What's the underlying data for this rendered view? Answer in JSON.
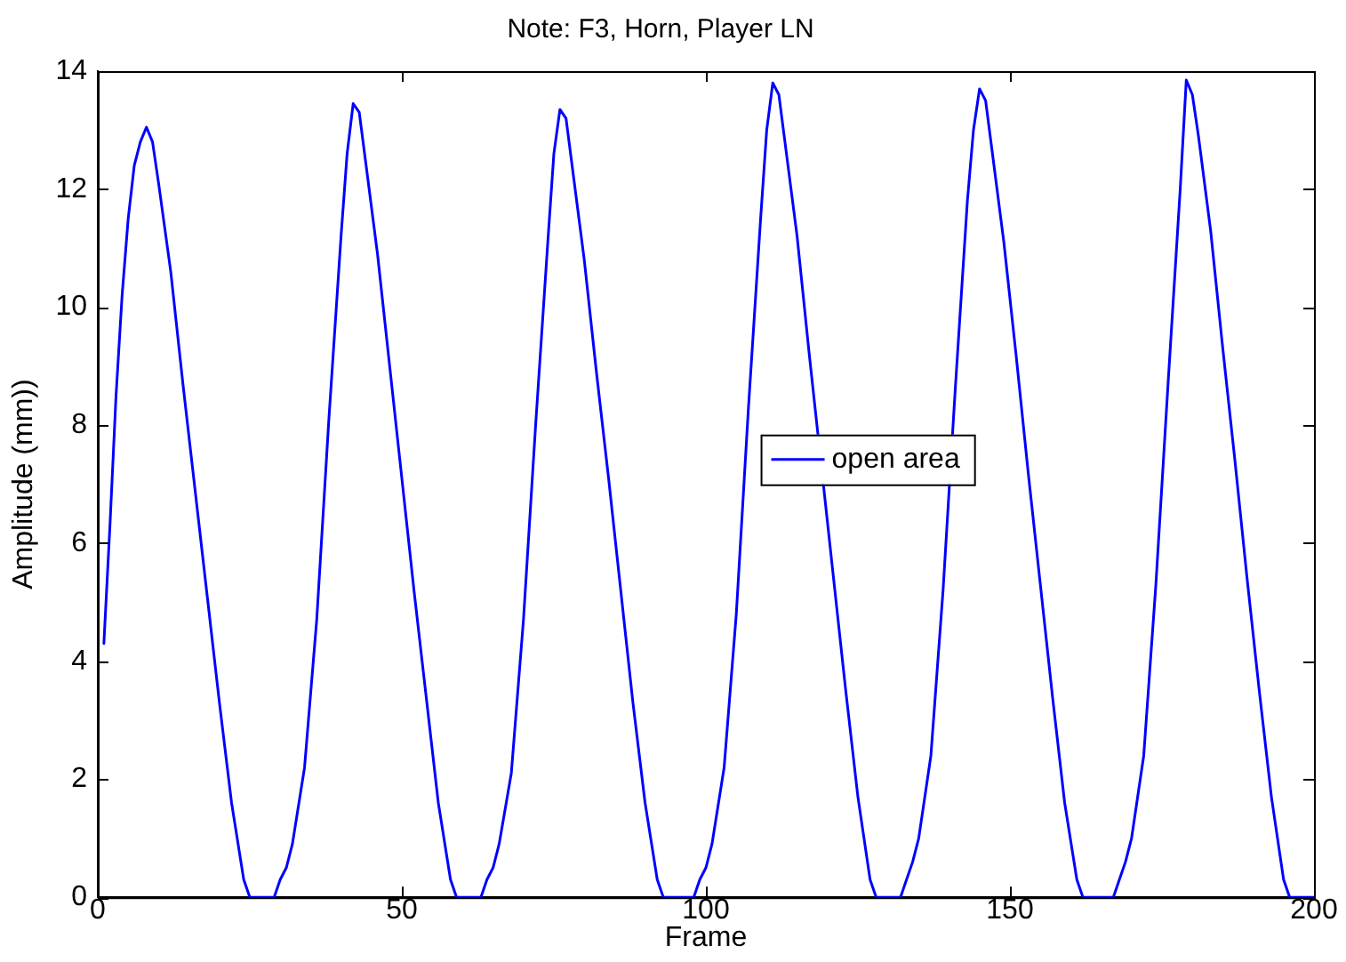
{
  "chart_data": {
    "type": "line",
    "title": "Note: F3, Horn, Player LN",
    "xlabel": "Frame",
    "ylabel": "Amplitude (mm))",
    "xlim": [
      0,
      200
    ],
    "xticks": [
      0,
      50,
      100,
      150,
      200
    ],
    "ylim": [
      0,
      14
    ],
    "yticks": [
      0,
      2,
      4,
      6,
      8,
      10,
      12,
      14
    ],
    "grid": false,
    "legend": "right",
    "marker": "none",
    "line_style": "solid",
    "series": [
      {
        "name": "open area",
        "color": "#0000ff",
        "x": [
          1,
          2,
          3,
          4,
          5,
          6,
          7,
          8,
          9,
          10,
          12,
          14,
          16,
          18,
          20,
          22,
          24,
          25,
          29,
          30,
          31,
          32,
          34,
          36,
          38,
          40,
          41,
          42,
          43,
          44,
          46,
          48,
          50,
          52,
          54,
          56,
          58,
          59,
          63,
          64,
          65,
          66,
          68,
          70,
          72,
          74,
          75,
          76,
          77,
          78,
          80,
          82,
          84,
          86,
          88,
          90,
          92,
          93,
          98,
          99,
          100,
          101,
          103,
          105,
          107,
          109,
          110,
          111,
          112,
          113,
          115,
          117,
          121,
          123,
          125,
          127,
          128,
          132,
          133,
          134,
          135,
          137,
          139,
          141,
          143,
          144,
          145,
          146,
          147,
          149,
          151,
          153,
          155,
          157,
          159,
          161,
          162,
          167,
          168,
          169,
          170,
          172,
          174,
          176,
          178,
          179,
          180,
          181,
          183,
          185,
          187,
          189,
          191,
          193,
          195,
          196,
          200
        ],
        "values": [
          4.3,
          6.3,
          8.5,
          10.2,
          11.5,
          12.4,
          12.8,
          13.05,
          12.8,
          12.1,
          10.6,
          8.7,
          6.9,
          5.1,
          3.3,
          1.6,
          0.3,
          0,
          0,
          0.3,
          0.5,
          0.9,
          2.2,
          4.7,
          8.1,
          11.2,
          12.6,
          13.45,
          13.3,
          12.5,
          10.9,
          9.0,
          7.1,
          5.2,
          3.4,
          1.6,
          0.3,
          0,
          0,
          0.3,
          0.5,
          0.9,
          2.1,
          4.7,
          8.0,
          11.1,
          12.6,
          13.35,
          13.2,
          12.4,
          10.8,
          8.9,
          7.1,
          5.2,
          3.3,
          1.6,
          0.3,
          0,
          0,
          0.3,
          0.5,
          0.9,
          2.2,
          4.8,
          8.3,
          11.5,
          13.0,
          13.8,
          13.6,
          12.8,
          11.2,
          9.2,
          5.4,
          3.5,
          1.7,
          0.3,
          0,
          0,
          0.3,
          0.6,
          1.0,
          2.4,
          5.2,
          8.6,
          11.8,
          13.0,
          13.7,
          13.5,
          12.7,
          11.1,
          9.2,
          7.2,
          5.3,
          3.4,
          1.6,
          0.3,
          0,
          0,
          0.3,
          0.6,
          1.0,
          2.4,
          5.3,
          8.7,
          12.0,
          13.85,
          13.6,
          12.9,
          11.3,
          9.3,
          7.4,
          5.4,
          3.5,
          1.7,
          0.3,
          0,
          0
        ]
      }
    ]
  }
}
